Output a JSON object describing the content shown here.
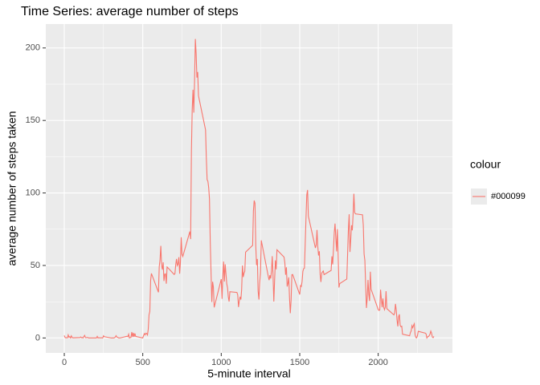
{
  "chart_data": {
    "type": "line",
    "title": "Time Series: average number of steps",
    "x_label": "5-minute interval",
    "y_label": "average number of steps taken",
    "legend_title": "colour",
    "legend_position": "right",
    "grid": true,
    "xlim": [
      -117.75,
      2472.75
    ],
    "ylim": [
      -10.31,
      216.48
    ],
    "xticks": [
      0,
      500,
      1000,
      1500,
      2000
    ],
    "yticks": [
      0,
      50,
      100,
      150,
      200
    ],
    "x_minor_ticks": [
      250,
      750,
      1250,
      1750,
      2250
    ],
    "y_minor_ticks": [
      25,
      75,
      125,
      175
    ],
    "x": [
      0,
      5,
      10,
      15,
      20,
      25,
      30,
      35,
      40,
      45,
      50,
      55,
      100,
      105,
      110,
      115,
      120,
      125,
      130,
      135,
      140,
      145,
      150,
      155,
      200,
      205,
      210,
      215,
      220,
      225,
      230,
      235,
      240,
      245,
      250,
      255,
      300,
      305,
      310,
      315,
      320,
      325,
      330,
      335,
      340,
      345,
      350,
      355,
      400,
      405,
      410,
      415,
      420,
      425,
      430,
      435,
      440,
      445,
      450,
      455,
      500,
      505,
      510,
      515,
      520,
      525,
      530,
      535,
      540,
      545,
      550,
      555,
      600,
      605,
      610,
      615,
      620,
      625,
      630,
      635,
      640,
      645,
      650,
      655,
      700,
      705,
      710,
      715,
      720,
      725,
      730,
      735,
      740,
      745,
      750,
      755,
      800,
      805,
      810,
      815,
      820,
      825,
      830,
      835,
      840,
      845,
      850,
      855,
      900,
      905,
      910,
      915,
      920,
      925,
      930,
      935,
      940,
      945,
      950,
      955,
      1000,
      1005,
      1010,
      1015,
      1020,
      1025,
      1030,
      1035,
      1040,
      1045,
      1050,
      1055,
      1100,
      1105,
      1110,
      1115,
      1120,
      1125,
      1130,
      1135,
      1140,
      1145,
      1150,
      1155,
      1200,
      1205,
      1210,
      1215,
      1220,
      1225,
      1230,
      1235,
      1240,
      1245,
      1250,
      1255,
      1300,
      1305,
      1310,
      1315,
      1320,
      1325,
      1330,
      1335,
      1340,
      1345,
      1350,
      1355,
      1400,
      1405,
      1410,
      1415,
      1420,
      1425,
      1430,
      1435,
      1440,
      1445,
      1450,
      1455,
      1500,
      1505,
      1510,
      1515,
      1520,
      1525,
      1530,
      1535,
      1540,
      1545,
      1550,
      1555,
      1600,
      1605,
      1610,
      1615,
      1620,
      1625,
      1630,
      1635,
      1640,
      1645,
      1650,
      1655,
      1700,
      1705,
      1710,
      1715,
      1720,
      1725,
      1730,
      1735,
      1740,
      1745,
      1750,
      1755,
      1800,
      1805,
      1810,
      1815,
      1820,
      1825,
      1830,
      1835,
      1840,
      1845,
      1850,
      1855,
      1900,
      1905,
      1910,
      1915,
      1920,
      1925,
      1930,
      1935,
      1940,
      1945,
      1950,
      1955,
      2000,
      2005,
      2010,
      2015,
      2020,
      2025,
      2030,
      2035,
      2040,
      2045,
      2050,
      2055,
      2100,
      2105,
      2110,
      2115,
      2120,
      2125,
      2130,
      2135,
      2140,
      2145,
      2150,
      2155,
      2200,
      2205,
      2210,
      2215,
      2220,
      2225,
      2230,
      2235,
      2240,
      2245,
      2250,
      2255,
      2300,
      2305,
      2310,
      2315,
      2320,
      2325,
      2330,
      2335,
      2340,
      2345,
      2350,
      2355
    ],
    "series": [
      {
        "name": "#000099",
        "color": "#f8766d",
        "values": [
          1.7,
          0.3,
          0.1,
          0.2,
          0.1,
          2.1,
          0.5,
          0.9,
          0,
          1.5,
          0.3,
          0.1,
          0.3,
          0.7,
          0.2,
          0.3,
          0,
          1.1,
          1.8,
          0.2,
          0.2,
          0.4,
          0.3,
          0,
          0,
          0,
          1.1,
          0,
          0.2,
          0.1,
          0,
          0.2,
          0,
          0,
          1.5,
          0.9,
          0,
          0,
          0,
          0,
          0.2,
          0.6,
          1.6,
          0.6,
          0.5,
          0.1,
          0,
          0,
          1.2,
          0.9,
          2.6,
          0,
          0.3,
          0.4,
          4.1,
          0.7,
          3.5,
          0.8,
          3.1,
          1.1,
          0,
          1.6,
          3,
          2.2,
          3.3,
          3,
          2.1,
          6.1,
          16,
          18.3,
          39.5,
          44.5,
          31.5,
          49.3,
          53.8,
          63.5,
          50,
          47.1,
          52.2,
          39.3,
          44,
          44.2,
          37.4,
          49,
          43.8,
          44.4,
          50.5,
          54.5,
          49.9,
          50.9,
          55.7,
          44.3,
          52.3,
          69.5,
          57.8,
          56.2,
          73.4,
          68.2,
          129.4,
          157.5,
          171.2,
          155.4,
          177.3,
          206.2,
          195.9,
          179.6,
          183.4,
          167,
          143.5,
          124,
          109.1,
          108.1,
          103.7,
          95.9,
          66.2,
          45.2,
          24.8,
          38.8,
          35,
          21.1,
          40.6,
          27,
          42.4,
          52.7,
          38.9,
          50.8,
          44.3,
          37.4,
          34.7,
          28.3,
          25.1,
          31.9,
          31.4,
          29.7,
          21.3,
          25.5,
          28.4,
          26.5,
          33.4,
          50,
          42,
          44.6,
          46,
          59.2,
          63.9,
          87.7,
          94.8,
          92.8,
          63.4,
          50.2,
          54.5,
          32.4,
          26.5,
          37.7,
          45.1,
          67.3,
          42.3,
          39.9,
          43.3,
          41,
          46.2,
          56.4,
          42.8,
          25.1,
          40,
          53.5,
          47.3,
          60.8,
          55.8,
          52,
          43.6,
          48.7,
          35.5,
          37.5,
          41.8,
          27.5,
          17.1,
          26.1,
          43.6,
          43.8,
          30,
          36.1,
          35.5,
          38.8,
          46,
          47.8,
          48.1,
          65.3,
          82.9,
          98.7,
          102.1,
          84,
          62.1,
          64.1,
          74.5,
          63.2,
          56.9,
          59.8,
          43.9,
          38.6,
          44.7,
          45.5,
          46.2,
          43.7,
          46.6,
          56.3,
          50.7,
          61.2,
          72.7,
          78.9,
          68.9,
          59.7,
          75.1,
          56.5,
          34.8,
          37.5,
          40.7,
          58,
          74.7,
          85.3,
          59.3,
          67.8,
          77.7,
          74.2,
          85.3,
          99.5,
          86.6,
          85.6,
          84.9,
          77.8,
          58,
          53.4,
          36.3,
          20.7,
          27.4,
          40,
          30.2,
          25.5,
          45.7,
          33.5,
          19.6,
          19,
          19.3,
          33.3,
          26.8,
          21.2,
          27.3,
          21.3,
          19.5,
          21.3,
          32.3,
          20.2,
          15.9,
          17.2,
          23.5,
          19.2,
          12.5,
          8,
          14.7,
          16.3,
          8.7,
          7.8,
          8.1,
          2.6,
          1.5,
          3.7,
          4.8,
          8.5,
          7.1,
          8.7,
          9.8,
          2.2,
          0.3,
          0.1,
          1.6,
          4.6,
          3.3,
          2.8,
          0,
          0.8,
          1,
          1.6,
          2.6,
          4.7,
          3.3,
          0.6,
          0.2,
          1.1
        ]
      }
    ]
  }
}
